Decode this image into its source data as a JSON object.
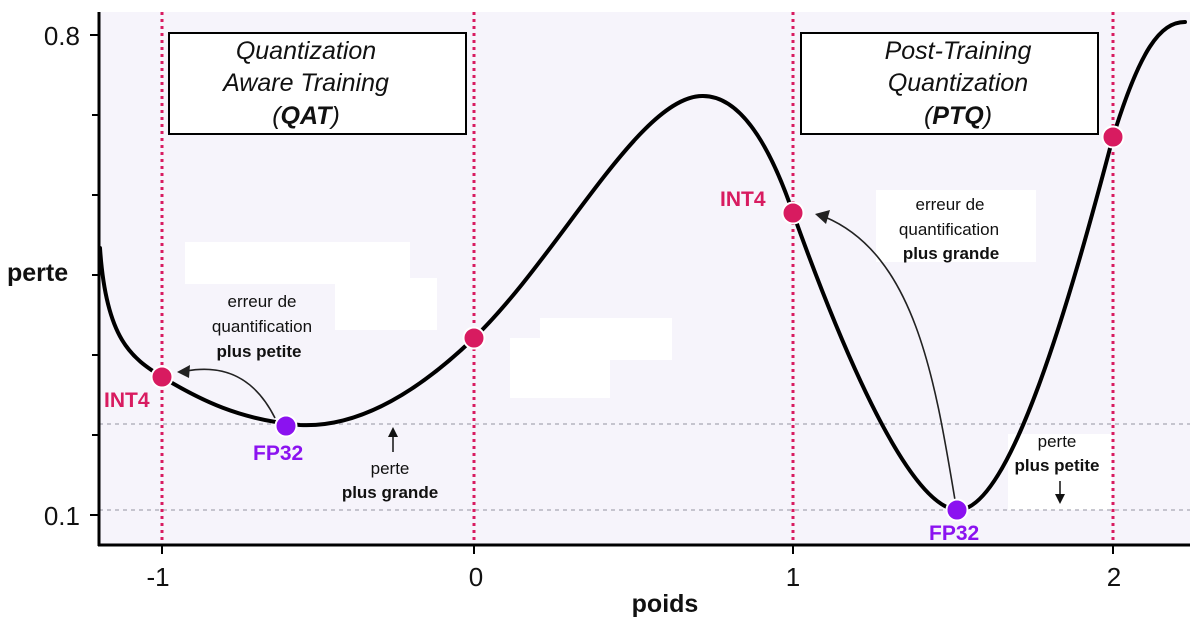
{
  "axes": {
    "xlabel": "poids",
    "ylabel": "perte",
    "x_ticks": [
      "-1",
      "0",
      "1",
      "2"
    ],
    "y_ticks": [
      "0.8",
      "0.1"
    ]
  },
  "boxes": {
    "qat": {
      "line1": "Quantization",
      "line2": "Aware Training",
      "open": "(",
      "abbr": "QAT",
      "close": ")"
    },
    "ptq": {
      "line1": "Post-Training",
      "line2": "Quantization",
      "open": "(",
      "abbr": "PTQ",
      "close": ")"
    }
  },
  "points": {
    "qat_int4": {
      "label": "INT4",
      "x": -1.0,
      "y": 0.29
    },
    "qat_fp32": {
      "label": "FP32",
      "x": -0.6,
      "y": 0.23
    },
    "origin": {
      "x": 0.0,
      "y": 0.34
    },
    "ptq_int4": {
      "label": "INT4",
      "x": 1.0,
      "y": 0.561
    },
    "ptq_fp32": {
      "label": "FP32",
      "x": 1.52,
      "y": 0.1
    },
    "right": {
      "x": 2.0,
      "y": 0.71
    }
  },
  "annotations": {
    "qat_error": {
      "line1": "erreur de",
      "line2": "quantification",
      "line3": "plus petite"
    },
    "ptq_error": {
      "line1": "erreur de",
      "line2": "quantification",
      "line3": "plus grande"
    },
    "qat_loss": {
      "line1": "perte",
      "line2": "plus grande"
    },
    "ptq_loss": {
      "line1": "perte",
      "line2": "plus petite"
    }
  },
  "colors": {
    "int4": "#d81b60",
    "fp32": "#8b12f0",
    "curve": "#000000",
    "vline": "#d81b60",
    "plot_bg": "#f6f4fb"
  }
}
